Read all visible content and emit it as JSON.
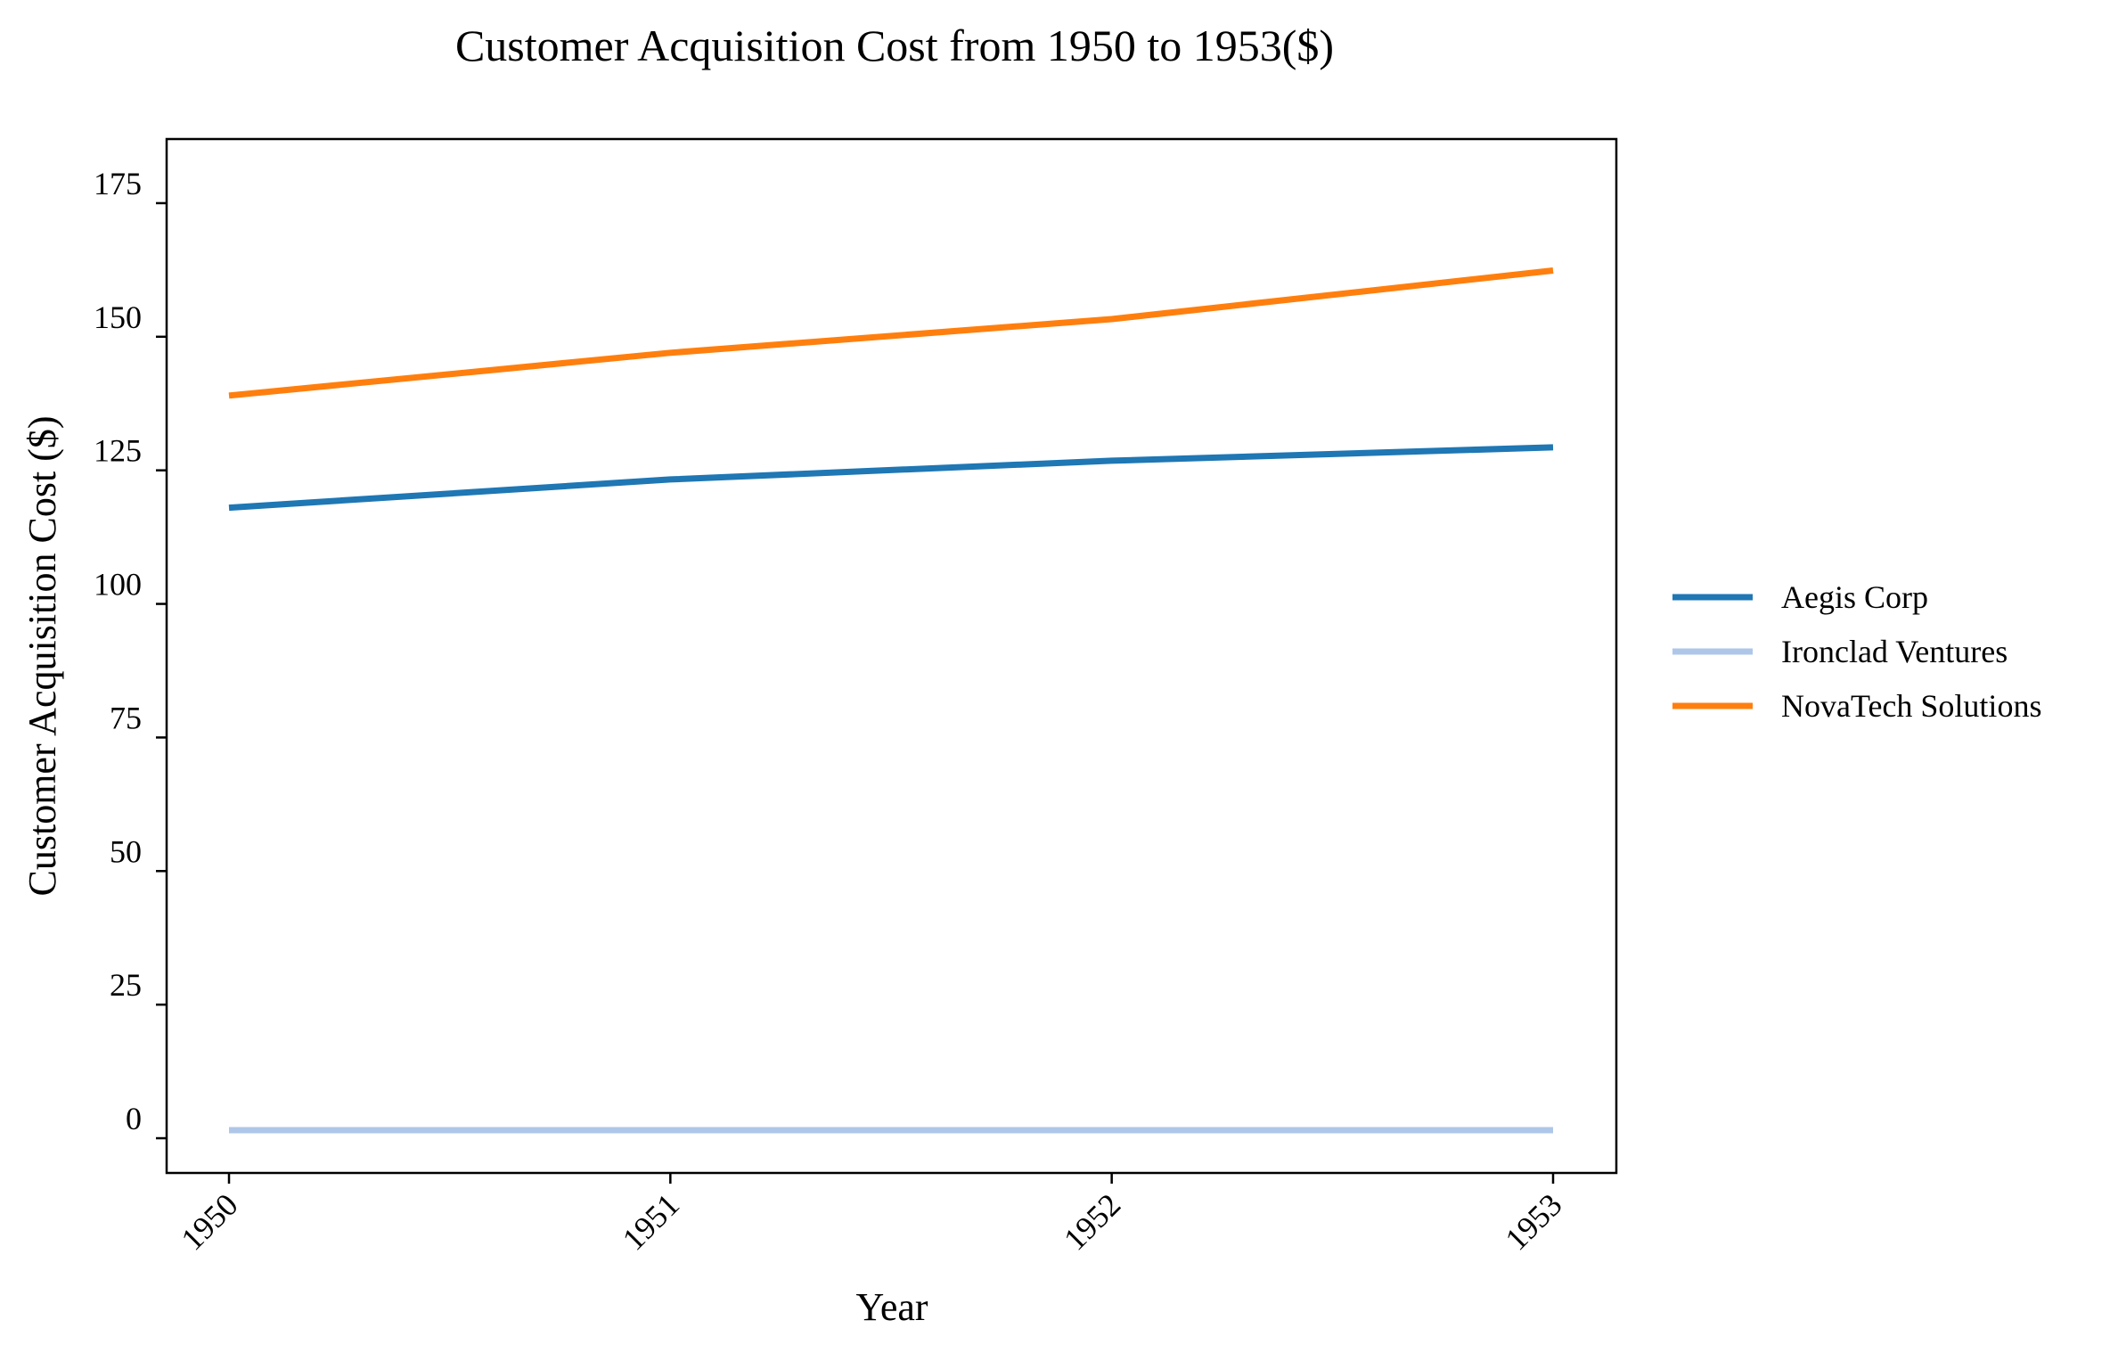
{
  "chart_data": {
    "type": "line",
    "title": "Customer Acquisition Cost from 1950 to 1953($)",
    "xlabel": "Year",
    "ylabel": "Customer Acquisition Cost ($)",
    "x": [
      "1950",
      "1951",
      "1952",
      "1953"
    ],
    "ylim": [
      -6.5,
      187
    ],
    "yticks": [
      0,
      25,
      50,
      75,
      100,
      125,
      150,
      175
    ],
    "grid": false,
    "legend_position": "right",
    "series": [
      {
        "name": "Aegis Corp",
        "color": "#1f77b4",
        "values": [
          118,
          123.3,
          126.8,
          129.3
        ]
      },
      {
        "name": "Ironclad Ventures",
        "color": "#aec7e8",
        "values": [
          1.5,
          1.5,
          1.5,
          1.5
        ]
      },
      {
        "name": "NovaTech Solutions",
        "color": "#ff7f0e",
        "values": [
          139,
          147,
          153.3,
          162.4
        ]
      }
    ]
  }
}
